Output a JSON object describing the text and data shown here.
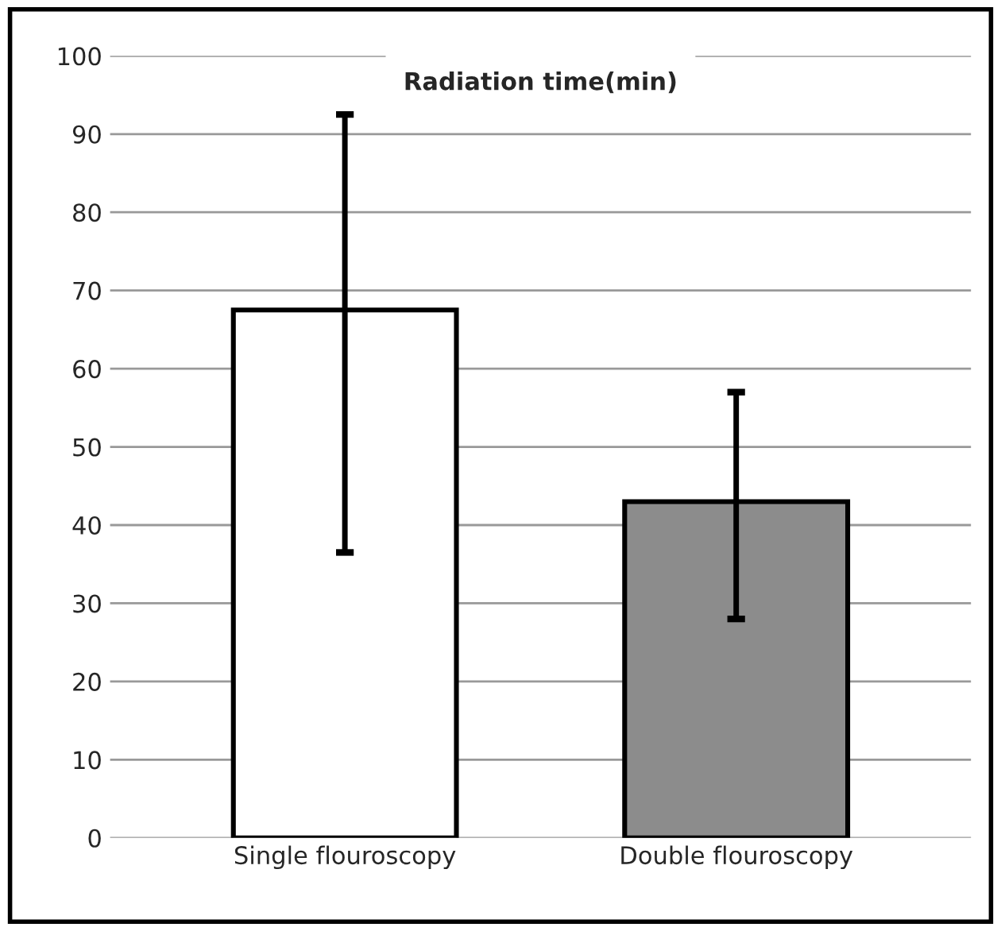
{
  "chart_data": {
    "type": "bar",
    "title": "Radiation time(min)",
    "categories": [
      "Single flouroscopy",
      "Double flouroscopy"
    ],
    "values": [
      67.5,
      43
    ],
    "colors": [
      "#ffffff",
      "#8c8c8c"
    ],
    "errors": [
      [
        36.5,
        92.5
      ],
      [
        28,
        57
      ]
    ],
    "ylim": [
      0,
      100
    ],
    "yticks": [
      0,
      10,
      20,
      30,
      40,
      50,
      60,
      70,
      80,
      90,
      100
    ],
    "grid": "y"
  }
}
